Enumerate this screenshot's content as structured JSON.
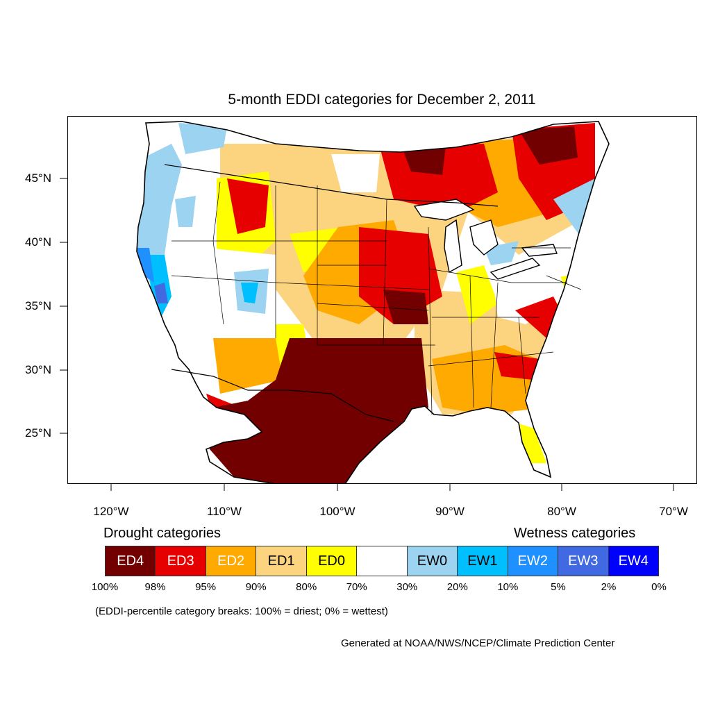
{
  "title": "5-month EDDI categories for December 2, 2011",
  "axes": {
    "latitude_labels": [
      "45°N",
      "40°N",
      "35°N",
      "30°N",
      "25°N"
    ],
    "longitude_labels": [
      "120°W",
      "110°W",
      "100°W",
      "90°W",
      "80°W",
      "70°W"
    ]
  },
  "legend": {
    "drought_heading": "Drought categories",
    "wetness_heading": "Wetness categories",
    "categories": [
      {
        "label": "ED4",
        "color": "#730000",
        "text_color": "#ffffff"
      },
      {
        "label": "ED3",
        "color": "#e60000",
        "text_color": "#ffffff"
      },
      {
        "label": "ED2",
        "color": "#ffaa00",
        "text_color": "#ffffff"
      },
      {
        "label": "ED1",
        "color": "#fcd37f",
        "text_color": "#000000"
      },
      {
        "label": "ED0",
        "color": "#ffff00",
        "text_color": "#000000"
      },
      {
        "label": "",
        "color": "#ffffff",
        "text_color": "#000000"
      },
      {
        "label": "EW0",
        "color": "#9bd3f0",
        "text_color": "#000000"
      },
      {
        "label": "EW1",
        "color": "#00bfff",
        "text_color": "#000000"
      },
      {
        "label": "EW2",
        "color": "#1e90ff",
        "text_color": "#ffffff"
      },
      {
        "label": "EW3",
        "color": "#4169e1",
        "text_color": "#ffffff"
      },
      {
        "label": "EW4",
        "color": "#0000ff",
        "text_color": "#ffffff"
      }
    ],
    "breaks": [
      "100%",
      "98%",
      "95%",
      "90%",
      "80%",
      "70%",
      "30%",
      "20%",
      "10%",
      "5%",
      "2%",
      "0%"
    ]
  },
  "note": "(EDDI-percentile category breaks: 100% = driest; 0% = wettest)",
  "credit": "Generated at NOAA/NWS/NCEP/Climate Prediction Center"
}
